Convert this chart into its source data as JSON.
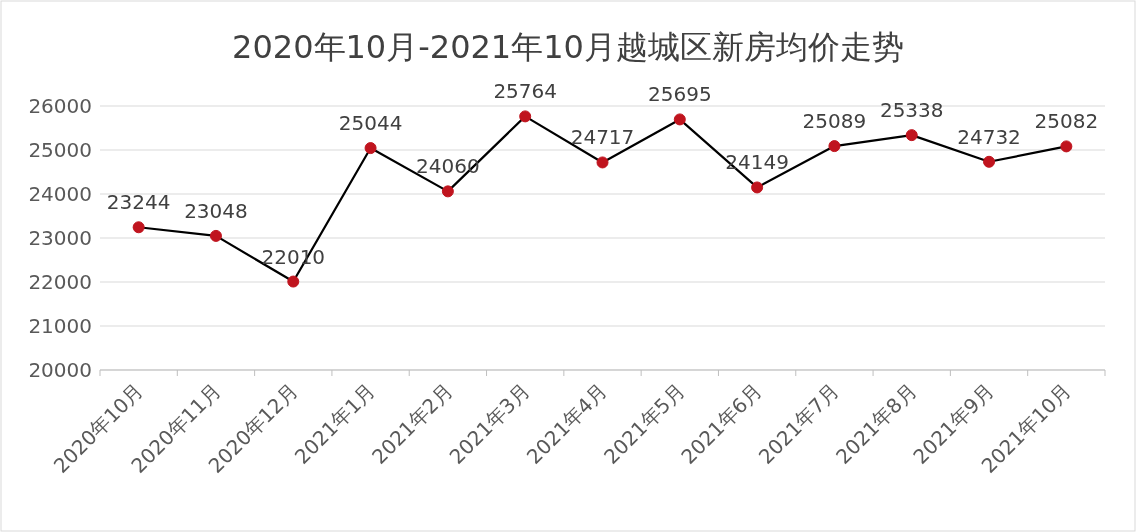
{
  "chart_data": {
    "type": "line",
    "title": "2020年10月-2021年10月越城区新房均价走势",
    "categories": [
      "2020年10月",
      "2020年11月",
      "2020年12月",
      "2021年1月",
      "2021年2月",
      "2021年3月",
      "2021年4月",
      "2021年5月",
      "2021年6月",
      "2021年7月",
      "2021年8月",
      "2021年9月",
      "2021年10月"
    ],
    "series": [
      {
        "color": "#000000",
        "colors": [
          "#c0141e",
          "#c0141e",
          "#c0141e",
          "#c0141e",
          "#c0141e",
          "#c0141e",
          "#c0141e",
          "#c0141e",
          "#c0141e",
          "#c0141e",
          "#c0141e",
          "#c0141e",
          "#c0141e"
        ],
        "values": [
          23244,
          23048,
          22010,
          25044,
          24060,
          25764,
          24717,
          25695,
          24149,
          25089,
          25338,
          24732,
          25082
        ]
      }
    ],
    "ylim": [
      20000,
      26000
    ],
    "yticks": [
      20000,
      21000,
      22000,
      23000,
      24000,
      25000,
      26000
    ],
    "grid": "y",
    "marker": "circle",
    "line_style": "solid",
    "data_labels": true
  }
}
